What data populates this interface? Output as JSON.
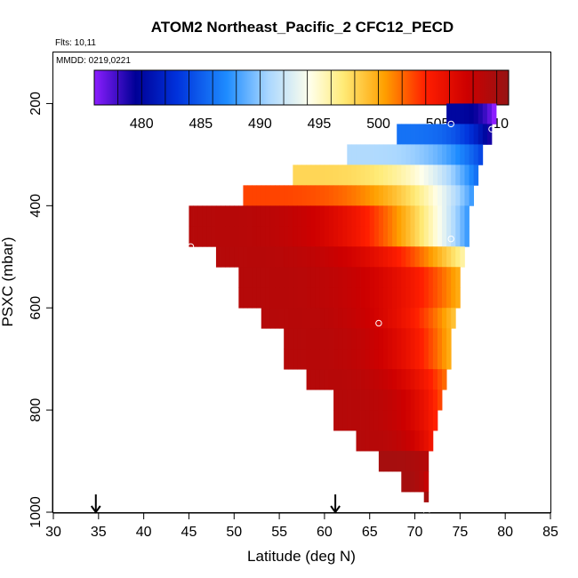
{
  "chart_data": {
    "type": "heatmap",
    "title": "ATOM2 Northeast_Pacific_2 CFC12_PECD",
    "flights_label": "Flts: 10,11",
    "mmdd_label": "MMDD: 0219,0221",
    "xlabel": "Latitude (deg N)",
    "ylabel": "PSXC (mbar)",
    "xlim": [
      30,
      85
    ],
    "ylim": [
      1000,
      100
    ],
    "x_ticks": [
      30,
      35,
      40,
      45,
      50,
      55,
      60,
      65,
      70,
      75,
      80,
      85
    ],
    "y_ticks": [
      200,
      400,
      600,
      800,
      1000
    ],
    "colorbar": {
      "range": [
        476,
        511
      ],
      "ticks": [
        480,
        485,
        490,
        495,
        500,
        505,
        510
      ]
    },
    "grid": false,
    "arrows_latitude": [
      34.7,
      61.2
    ],
    "rows": [
      {
        "p_top": 200,
        "p_bot": 240,
        "lat_min": 73.5,
        "lat_max": 79,
        "value_left": 480,
        "value_right": 476
      },
      {
        "p_top": 240,
        "p_bot": 280,
        "lat_min": 68,
        "lat_max": 78.5,
        "value_left": 486,
        "value_right": 479
      },
      {
        "p_top": 280,
        "p_bot": 320,
        "lat_min": 62.5,
        "lat_max": 77.5,
        "value_left": 491,
        "value_right": 484
      },
      {
        "p_top": 320,
        "p_bot": 360,
        "lat_min": 56.5,
        "lat_max": 77,
        "value_left": 498,
        "value_right": 486
      },
      {
        "p_top": 360,
        "p_bot": 400,
        "lat_min": 51,
        "lat_max": 76.5,
        "value_left": 503,
        "value_right": 488
      },
      {
        "p_top": 400,
        "p_bot": 440,
        "lat_min": 45,
        "lat_max": 76,
        "value_left": 509,
        "value_right": 488
      },
      {
        "p_top": 440,
        "p_bot": 480,
        "lat_min": 45,
        "lat_max": 76,
        "value_left": 509,
        "value_right": 488
      },
      {
        "p_top": 480,
        "p_bot": 520,
        "lat_min": 48,
        "lat_max": 75.5,
        "value_left": 509,
        "value_right": 496
      },
      {
        "p_top": 520,
        "p_bot": 560,
        "lat_min": 50.5,
        "lat_max": 75,
        "value_left": 509,
        "value_right": 500
      },
      {
        "p_top": 560,
        "p_bot": 600,
        "lat_min": 50.5,
        "lat_max": 75,
        "value_left": 509,
        "value_right": 500
      },
      {
        "p_top": 600,
        "p_bot": 640,
        "lat_min": 53,
        "lat_max": 74.5,
        "value_left": 509,
        "value_right": 499
      },
      {
        "p_top": 640,
        "p_bot": 680,
        "lat_min": 55.5,
        "lat_max": 74,
        "value_left": 509,
        "value_right": 500
      },
      {
        "p_top": 680,
        "p_bot": 720,
        "lat_min": 55.5,
        "lat_max": 74,
        "value_left": 509,
        "value_right": 500
      },
      {
        "p_top": 720,
        "p_bot": 760,
        "lat_min": 58,
        "lat_max": 73.5,
        "value_left": 509,
        "value_right": 502
      },
      {
        "p_top": 760,
        "p_bot": 800,
        "lat_min": 61,
        "lat_max": 73,
        "value_left": 509,
        "value_right": 503
      },
      {
        "p_top": 800,
        "p_bot": 840,
        "lat_min": 61,
        "lat_max": 72.5,
        "value_left": 509,
        "value_right": 504
      },
      {
        "p_top": 840,
        "p_bot": 880,
        "lat_min": 63.5,
        "lat_max": 72,
        "value_left": 509,
        "value_right": 505
      },
      {
        "p_top": 880,
        "p_bot": 920,
        "lat_min": 66,
        "lat_max": 71.5,
        "value_left": 510,
        "value_right": 509
      },
      {
        "p_top": 920,
        "p_bot": 960,
        "lat_min": 68.5,
        "lat_max": 71.5,
        "value_left": 510,
        "value_right": 508
      },
      {
        "p_top": 960,
        "p_bot": 980,
        "lat_min": 71,
        "lat_max": 71.5,
        "value_left": 510,
        "value_right": 510
      }
    ],
    "points": [
      {
        "lat": 74,
        "p": 240
      },
      {
        "lat": 78.5,
        "p": 250
      },
      {
        "lat": 45.2,
        "p": 480
      },
      {
        "lat": 74,
        "p": 465
      },
      {
        "lat": 66,
        "p": 630
      },
      {
        "lat": 71.3,
        "p": 1000
      }
    ]
  }
}
